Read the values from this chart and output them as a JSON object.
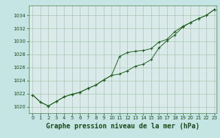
{
  "title": "Graphe pression niveau de la mer (hPa)",
  "bg_color": "#c5e5e5",
  "plot_bg_color": "#daeaea",
  "line_color": "#1a5c1a",
  "grid_color": "#9cbc9c",
  "xlim_min": -0.5,
  "xlim_max": 23.3,
  "ylim_min": 1019.0,
  "ylim_max": 1035.5,
  "xticks": [
    0,
    1,
    2,
    3,
    4,
    5,
    6,
    7,
    8,
    9,
    10,
    11,
    12,
    13,
    14,
    15,
    16,
    17,
    18,
    19,
    20,
    21,
    22,
    23
  ],
  "yticks": [
    1020,
    1022,
    1024,
    1026,
    1028,
    1030,
    1032,
    1034
  ],
  "series1_x": [
    0,
    1,
    2,
    3,
    4,
    5,
    6,
    7,
    8,
    9,
    10,
    11,
    12,
    13,
    14,
    15,
    16,
    17,
    18,
    19,
    20,
    21,
    22,
    23
  ],
  "series1_y": [
    1021.8,
    1020.7,
    1020.1,
    1020.8,
    1021.5,
    1021.9,
    1022.2,
    1022.8,
    1023.3,
    1024.1,
    1024.8,
    1027.7,
    1028.3,
    1028.5,
    1028.6,
    1028.9,
    1029.9,
    1030.3,
    1031.5,
    1032.3,
    1032.9,
    1033.5,
    1034.0,
    1034.9
  ],
  "series2_x": [
    0,
    1,
    2,
    3,
    4,
    5,
    6,
    7,
    8,
    9,
    10,
    11,
    12,
    13,
    14,
    15,
    16,
    17,
    18,
    19,
    20,
    21,
    22,
    23
  ],
  "series2_y": [
    1021.8,
    1020.7,
    1020.1,
    1020.8,
    1021.5,
    1021.9,
    1022.2,
    1022.8,
    1023.3,
    1024.1,
    1024.8,
    1025.0,
    1025.5,
    1026.2,
    1026.5,
    1027.2,
    1029.0,
    1030.1,
    1031.0,
    1032.2,
    1032.9,
    1033.5,
    1034.0,
    1034.9
  ],
  "title_fontsize": 7,
  "tick_fontsize": 5,
  "xlabel_fontsize": 7
}
